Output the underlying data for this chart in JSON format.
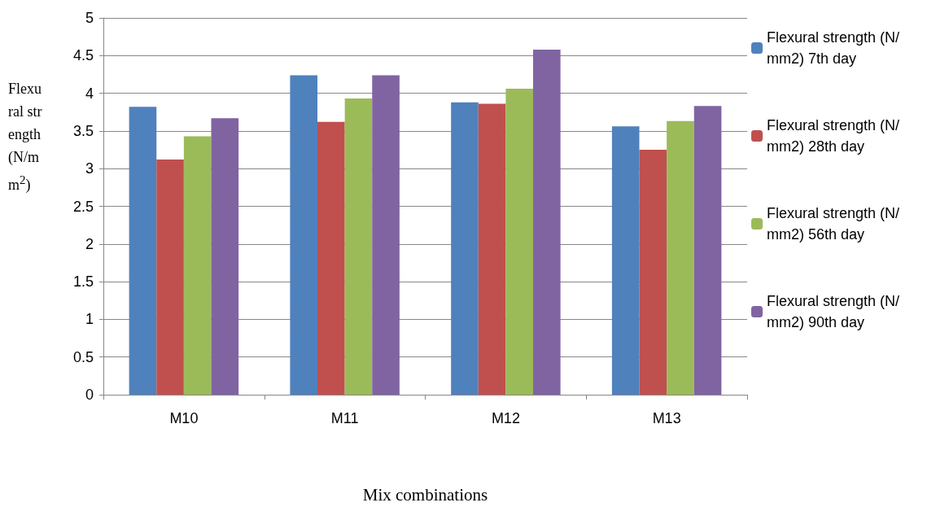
{
  "chart_data": {
    "type": "bar",
    "xlabel": "Mix combinations",
    "ylabel": "Flexural strength (N/mm$^{2}$)",
    "categories": [
      "M10",
      "M11",
      "M12",
      "M13"
    ],
    "series": [
      {
        "name": "Flexural strength (N/mm2) 7th day",
        "color": "#4f81bd",
        "values": [
          3.82,
          4.24,
          3.88,
          3.56
        ]
      },
      {
        "name": "Flexural strength (N/mm2) 28th day",
        "color": "#c0504d",
        "values": [
          3.12,
          3.62,
          3.86,
          3.25
        ]
      },
      {
        "name": "Flexural strength (N/mm2) 56th day",
        "color": "#9bbb59",
        "values": [
          3.43,
          3.93,
          4.06,
          3.63
        ]
      },
      {
        "name": "Flexural strength (N/mm2) 90th day",
        "color": "#8064a2",
        "values": [
          3.67,
          4.24,
          4.58,
          3.83
        ]
      }
    ],
    "ylim": [
      0,
      5
    ],
    "yticks": [
      0,
      0.5,
      1,
      1.5,
      2,
      2.5,
      3,
      3.5,
      4,
      4.5,
      5
    ],
    "grid": "y",
    "legend": "right"
  }
}
